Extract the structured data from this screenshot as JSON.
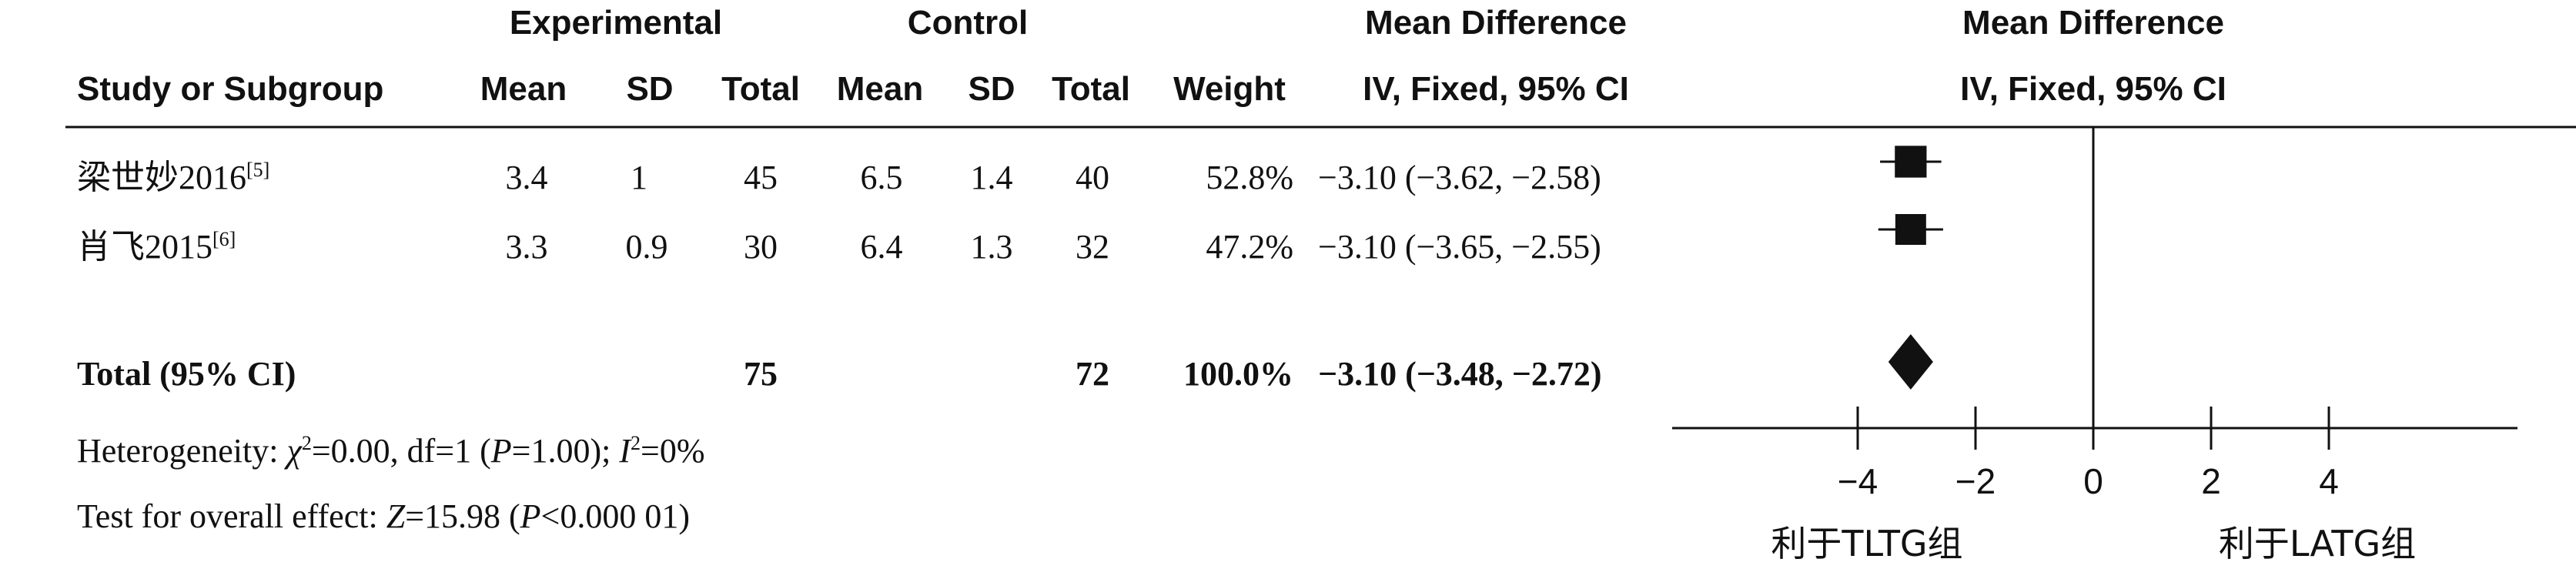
{
  "headers": {
    "experimental": "Experimental",
    "control": "Control",
    "md_left_line1": "Mean Difference",
    "md_left_line2": "IV, Fixed, 95% CI",
    "md_right_line1": "Mean Difference",
    "md_right_line2": "IV, Fixed, 95% CI",
    "study": "Study or Subgroup",
    "mean_e": "Mean",
    "sd_e": "SD",
    "total_e": "Total",
    "mean_c": "Mean",
    "sd_c": "SD",
    "total_c": "Total",
    "weight": "Weight"
  },
  "studies": [
    {
      "name": "梁世妙2016",
      "ref": "[5]",
      "mean_e": "3.4",
      "sd_e": "1",
      "total_e": "45",
      "mean_c": "6.5",
      "sd_c": "1.4",
      "total_c": "40",
      "weight": "52.8%",
      "ci_text": "−3.10 (−3.62, −2.58)"
    },
    {
      "name": "肖飞2015",
      "ref": "[6]",
      "mean_e": "3.3",
      "sd_e": "0.9",
      "total_e": "30",
      "mean_c": "6.4",
      "sd_c": "1.3",
      "total_c": "32",
      "weight": "47.2%",
      "ci_text": "−3.10 (−3.65, −2.55)"
    }
  ],
  "total": {
    "label": "Total (95% CI)",
    "total_e": "75",
    "total_c": "72",
    "weight": "100.0%",
    "ci_text": "−3.10 (−3.48, −2.72)"
  },
  "heterogeneity": {
    "prefix": "Heterogeneity: ",
    "chi": "χ",
    "chi_sup": "2",
    "chi_val": "=0.00, df=1 (",
    "p": "P",
    "p_val": "=1.00); ",
    "i": "I",
    "i_sup": "2",
    "i_val": "=0%"
  },
  "overall": {
    "prefix": "Test for overall effect: ",
    "z": "Z",
    "z_val": "=15.98 (",
    "p": "P",
    "p_val": "<0.000 01)"
  },
  "favours": {
    "left": "利于TLTG组",
    "right": "利于LATG组"
  },
  "chart_data": {
    "type": "forest",
    "xlim": [
      -4,
      4
    ],
    "ticks": [
      -4,
      -2,
      0,
      2,
      4
    ],
    "tick_labels": [
      "−4",
      "−2",
      "0",
      "2",
      "4"
    ],
    "studies": [
      {
        "name": "梁世妙2016",
        "md": -3.1,
        "lower": -3.62,
        "upper": -2.58,
        "weight": 52.8
      },
      {
        "name": "肖飞2015",
        "md": -3.1,
        "lower": -3.65,
        "upper": -2.55,
        "weight": 47.2
      }
    ],
    "pooled": {
      "md": -3.1,
      "lower": -3.48,
      "upper": -2.72
    }
  }
}
